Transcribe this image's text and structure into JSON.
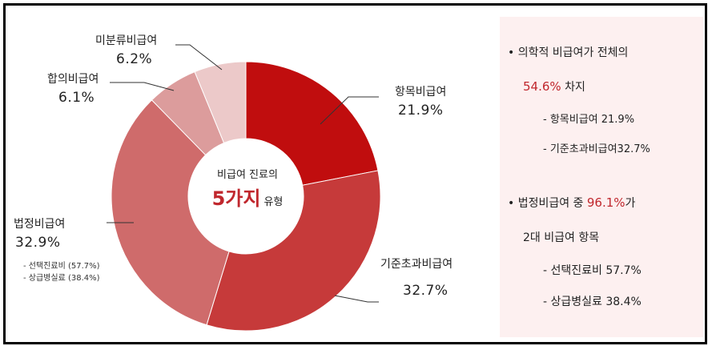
{
  "chart_data": {
    "type": "pie",
    "variant": "donut",
    "start": "top, clockwise",
    "slices": [
      {
        "name": "항목비급여",
        "value": 21.9,
        "label": "21.9%",
        "color": "#c00d0e"
      },
      {
        "name": "기준초과비급여",
        "value": 32.7,
        "label": "32.7%",
        "color": "#c63a3a"
      },
      {
        "name": "법정비급여",
        "value": 32.9,
        "label": "32.9%",
        "color": "#cf6b6b"
      },
      {
        "name": "합의비급여",
        "value": 6.1,
        "label": "6.1%",
        "color": "#dc9c9c"
      },
      {
        "name": "미분류비급여",
        "value": 6.2,
        "label": "6.2%",
        "color": "#ecc9c9"
      }
    ],
    "center_text": {
      "line1": "비급여 진료의",
      "big": "5가지",
      "suffix": "유형"
    },
    "sub_labels": [
      "- 선택진료비 (57.7%)",
      "- 상급병실료 (38.4%)"
    ]
  },
  "panel": {
    "b1_line1": "• 의학적 비급여가 전체의",
    "b1_highlight": "54.6%",
    "b1_rest": " 차지",
    "b1_sub1": "- 항목비급여 21.9%",
    "b1_sub2": "- 기준초과비급여32.7%",
    "b2_prefix": "• 법정비급여 중 ",
    "b2_highlight": "96.1%",
    "b2_suffix": "가",
    "b2_line2": "2대 비급여 항목",
    "b2_sub1": "- 선택진료비 57.7%",
    "b2_sub2": "- 상급병실료 38.4%"
  },
  "colors": {
    "accent": "#c0272d",
    "panel_bg": "#fdf0f0"
  }
}
